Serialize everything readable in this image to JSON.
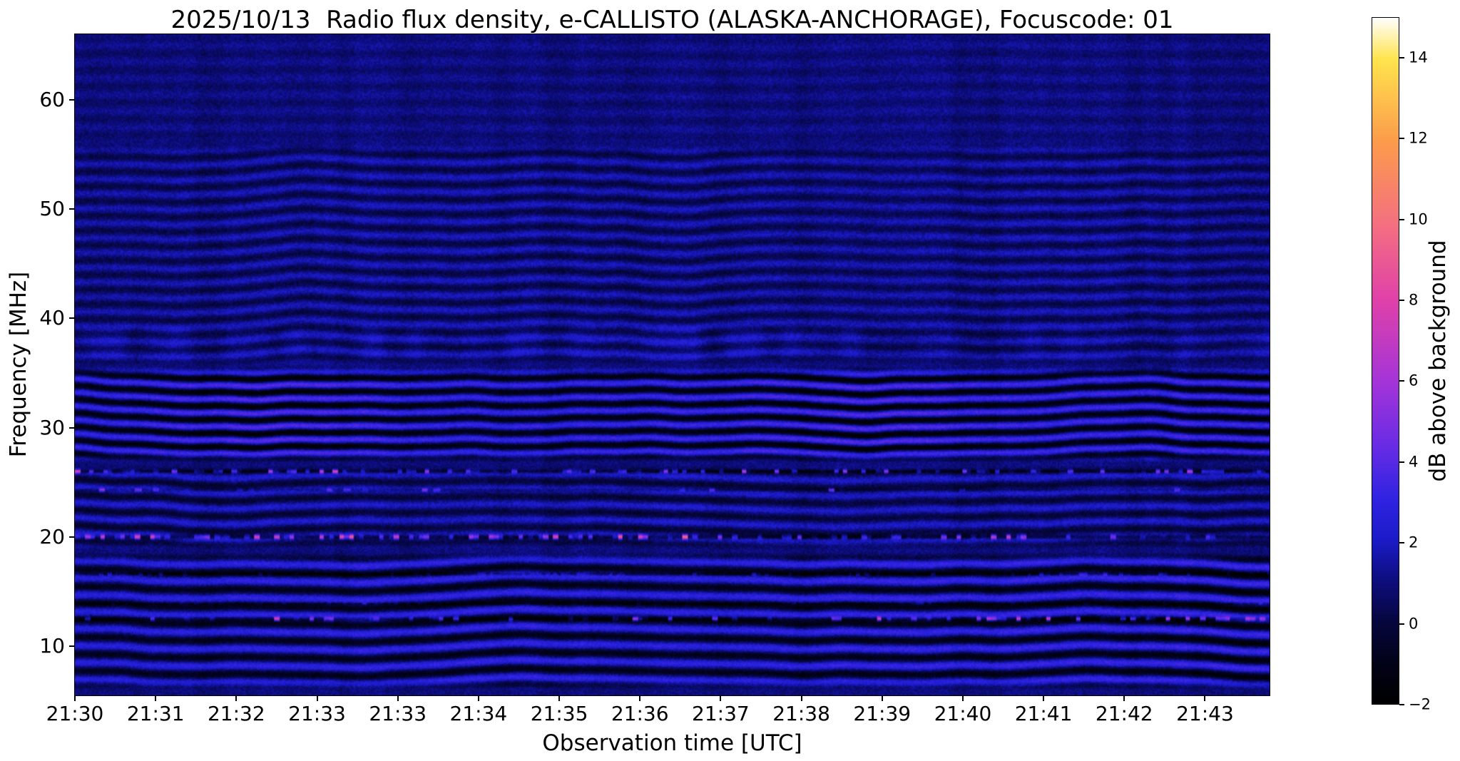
{
  "figure": {
    "background": "#ffffff"
  },
  "chart_data": {
    "type": "heatmap",
    "title": "2025/10/13  Radio flux density, e-CALLISTO (ALASKA-ANCHORAGE), Focuscode: 01",
    "xlabel": "Observation time [UTC]",
    "ylabel": "Frequency [MHz]",
    "colorbar_label": "dB above background",
    "x_tick_labels": [
      "21:30",
      "21:31",
      "21:32",
      "21:33",
      "21:33",
      "21:34",
      "21:35",
      "21:36",
      "21:37",
      "21:38",
      "21:39",
      "21:40",
      "21:41",
      "21:42",
      "21:43"
    ],
    "y_ticks": [
      10,
      20,
      30,
      40,
      50,
      60
    ],
    "y_range_mhz": [
      5.5,
      66.0
    ],
    "value_range_db": [
      -2,
      15
    ],
    "colorbar_ticks": [
      -2,
      0,
      2,
      4,
      6,
      8,
      10,
      12,
      14
    ],
    "colormap_stops": [
      [
        0.0,
        "#000000"
      ],
      [
        0.06,
        "#020218"
      ],
      [
        0.12,
        "#06063e"
      ],
      [
        0.18,
        "#0d0d7e"
      ],
      [
        0.24,
        "#1b1bc8"
      ],
      [
        0.3,
        "#3023e2"
      ],
      [
        0.38,
        "#6b2ce4"
      ],
      [
        0.47,
        "#a434d8"
      ],
      [
        0.59,
        "#e041a8"
      ],
      [
        0.7,
        "#f4707f"
      ],
      [
        0.82,
        "#fc9b4b"
      ],
      [
        0.94,
        "#ffe44d"
      ],
      [
        1.0,
        "#ffffff"
      ]
    ],
    "background_level_db": 1.0,
    "noise_db": 0.45,
    "fringe_bands": [
      {
        "fmin": 26.8,
        "fmax": 35.6,
        "amplitude": 2.6,
        "wavelength_mhz": 1.25,
        "wobble_mhz": 0.45,
        "wobble_cycles": 9,
        "seed": 11
      },
      {
        "fmin": 18.8,
        "fmax": 26.6,
        "amplitude": 1.2,
        "wavelength_mhz": 1.4,
        "wobble_mhz": 0.4,
        "wobble_cycles": 8,
        "seed": 17
      },
      {
        "fmin": 6.0,
        "fmax": 18.6,
        "amplitude": 2.1,
        "wavelength_mhz": 1.55,
        "wobble_mhz": 0.5,
        "wobble_cycles": 8,
        "seed": 23
      },
      {
        "fmin": 35.6,
        "fmax": 56.0,
        "amplitude": 0.8,
        "wavelength_mhz": 1.35,
        "wobble_mhz": 0.35,
        "wobble_cycles": 10,
        "seed": 37
      },
      {
        "fmin": 56.0,
        "fmax": 66.0,
        "amplitude": 0.3,
        "wavelength_mhz": 1.5,
        "wobble_mhz": 0.2,
        "wobble_cycles": 7,
        "seed": 41
      }
    ],
    "patch_bands": [
      {
        "fmin": 36.0,
        "fmax": 39.5,
        "amplitude": 0.9,
        "cells": 60,
        "seed": 53
      }
    ],
    "rfi_lines": [
      {
        "freq": 26.0,
        "sigma": 0.16,
        "dark": -1.6,
        "burst": 9.5,
        "density": 0.45,
        "cells": 260,
        "bias": 0.0,
        "seed": 61
      },
      {
        "freq": 20.0,
        "sigma": 0.2,
        "dark": -1.8,
        "burst": 11.0,
        "density": 0.5,
        "cells": 240,
        "bias": -0.25,
        "seed": 67
      },
      {
        "freq": 24.3,
        "sigma": 0.14,
        "dark": -0.8,
        "burst": 7.0,
        "density": 0.12,
        "cells": 200,
        "bias": 0.0,
        "seed": 71
      },
      {
        "freq": 12.5,
        "sigma": 0.18,
        "dark": -1.2,
        "burst": 9.0,
        "density": 0.4,
        "cells": 240,
        "bias": 0.35,
        "seed": 73
      },
      {
        "freq": 16.6,
        "sigma": 0.14,
        "dark": -1.4,
        "burst": 3.5,
        "density": 0.6,
        "cells": 300,
        "bias": 0.0,
        "seed": 79
      },
      {
        "freq": 13.9,
        "sigma": 0.12,
        "dark": -1.3,
        "burst": 2.5,
        "density": 0.5,
        "cells": 300,
        "bias": 0.0,
        "seed": 83
      }
    ]
  }
}
